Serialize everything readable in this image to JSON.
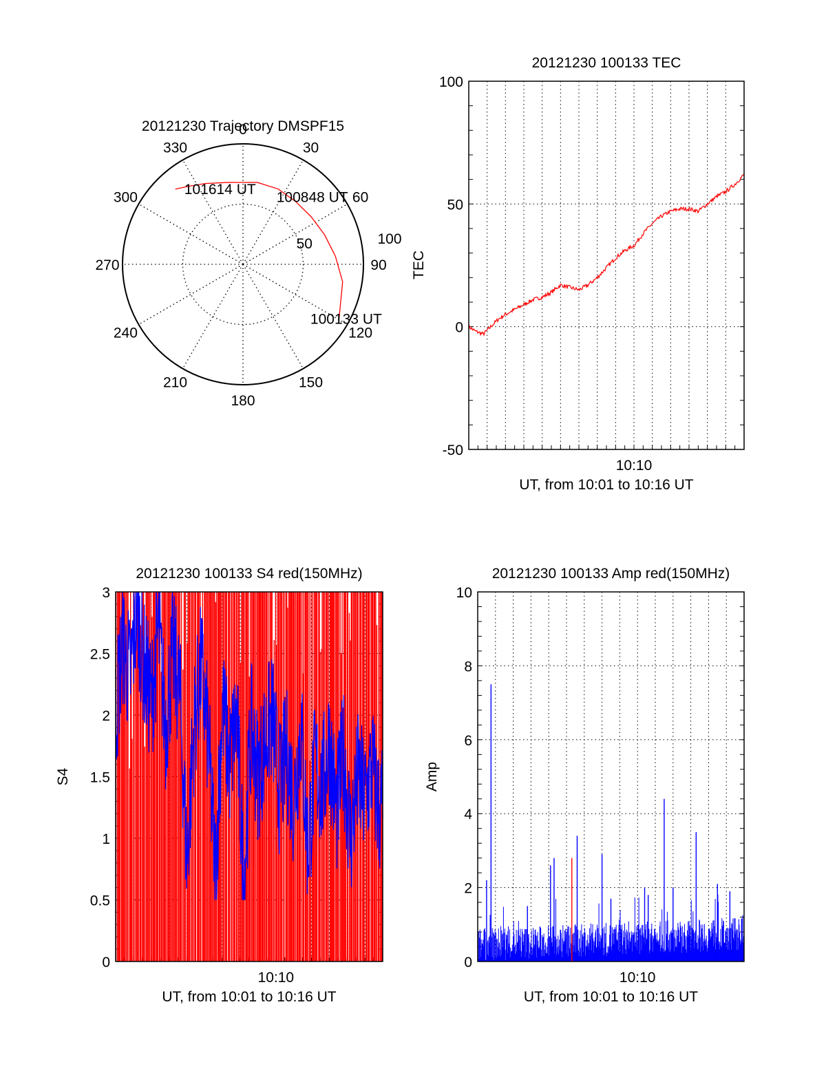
{
  "colors": {
    "red": "#ff0000",
    "blue": "#0000ff",
    "axis": "#000000",
    "grid": "#000000"
  },
  "chart_data": [
    {
      "id": "trajectory",
      "type": "polar",
      "title": "20121230 Trajectory DMSPF15",
      "angle_labels": [
        "0",
        "30",
        "60",
        "90",
        "120",
        "150",
        "180",
        "210",
        "240",
        "270",
        "300",
        "330"
      ],
      "angles_deg": [
        0,
        30,
        60,
        90,
        120,
        150,
        180,
        210,
        240,
        270,
        300,
        330
      ],
      "radial_labels": [
        "50",
        "100"
      ],
      "radial_values": [
        50,
        100
      ],
      "rlim": [
        0,
        100
      ],
      "grid": true,
      "trajectory": {
        "color": "red",
        "points": [
          {
            "az": 120,
            "r": 92
          },
          {
            "az": 100,
            "r": 84
          },
          {
            "az": 85,
            "r": 77
          },
          {
            "az": 70,
            "r": 72
          },
          {
            "az": 55,
            "r": 69
          },
          {
            "az": 40,
            "r": 68
          },
          {
            "az": 25,
            "r": 69
          },
          {
            "az": 10,
            "r": 69
          },
          {
            "az": 0,
            "r": 68
          },
          {
            "az": 350,
            "r": 69
          },
          {
            "az": 335,
            "r": 74
          },
          {
            "az": 325,
            "r": 79
          },
          {
            "az": 318,
            "r": 84
          }
        ],
        "annotations": [
          {
            "text": "101614 UT",
            "az": 343,
            "r": 65
          },
          {
            "text": "100848 UT",
            "az": 46,
            "r": 80
          },
          {
            "text": "100133 UT",
            "az": 118,
            "r": 97
          }
        ]
      }
    },
    {
      "id": "tec",
      "type": "line",
      "title": "20121230 100133 TEC",
      "xlabel": "UT, from 10:01 to 10:16 UT",
      "ylabel": "TEC",
      "x_tick_label": "10:10",
      "ylim": [
        -50,
        100
      ],
      "yticks": [
        -50,
        0,
        50,
        100
      ],
      "grid": true,
      "series": [
        {
          "color": "red",
          "x_minutes": [
            0,
            0.4,
            0.8,
            1.2,
            1.6,
            2.0,
            2.5,
            3.0,
            3.5,
            4.0,
            4.5,
            5.0,
            5.5,
            6.0,
            6.5,
            7.0,
            7.5,
            8.0,
            8.5,
            9.0,
            9.5,
            10.0,
            10.5,
            11.0,
            11.5,
            12.0,
            12.5,
            13.0,
            13.5,
            14.0,
            14.5,
            15.0
          ],
          "values": [
            0,
            -2,
            -3,
            0,
            3,
            5,
            7,
            9,
            11,
            12,
            14,
            17,
            16,
            15,
            17,
            20,
            24,
            28,
            31,
            33,
            38,
            42,
            45,
            47,
            48,
            48,
            47,
            50,
            53,
            55,
            58,
            62
          ]
        }
      ]
    },
    {
      "id": "s4",
      "type": "line",
      "title": "20121230 100133 S4 red(150MHz)",
      "xlabel": "UT, from 10:01 to 10:16 UT",
      "ylabel": "S4",
      "x_tick_label": "10:10",
      "ylim": [
        0,
        3
      ],
      "yticks": [
        0,
        0.5,
        1,
        1.5,
        2,
        2.5,
        3
      ],
      "ytick_labels": [
        "0",
        "0.5",
        "1",
        "1.5",
        "2",
        "2.5",
        "3"
      ],
      "grid": true,
      "series": [
        {
          "color": "red",
          "style": "spikes",
          "x_minutes": [
            0.1,
            0.3,
            0.5,
            0.8,
            1.1,
            1.4,
            1.7,
            2.0,
            2.4,
            2.8,
            3.2,
            3.6,
            4.0,
            4.5,
            5.0,
            5.5,
            6.0,
            6.5,
            7.0,
            7.5,
            8.0,
            8.5,
            9.0,
            9.5,
            10.0,
            10.5,
            11.0,
            11.5,
            12.0,
            12.5,
            13.0,
            13.5,
            14.0,
            14.5,
            14.9
          ],
          "values": [
            3,
            3,
            2.8,
            3,
            3,
            3,
            2.9,
            3,
            3,
            3,
            3,
            3,
            3,
            3,
            3,
            3,
            3,
            3,
            3,
            3,
            3,
            3,
            3,
            3,
            3,
            3,
            3,
            3,
            3,
            3,
            3,
            3,
            3,
            3,
            3
          ]
        },
        {
          "color": "blue",
          "x_minutes": [
            0,
            0.4,
            0.8,
            1.2,
            1.6,
            2.0,
            2.4,
            2.8,
            3.2,
            3.6,
            4.0,
            4.4,
            4.8,
            5.2,
            5.6,
            6.0,
            6.4,
            6.8,
            7.2,
            7.6,
            8.0,
            8.4,
            8.8,
            9.2,
            9.6,
            10.0,
            10.4,
            10.8,
            11.2,
            11.6,
            12.0,
            12.4,
            12.8,
            13.2,
            13.6,
            14.0,
            14.4,
            14.8,
            15.0
          ],
          "values": [
            2.0,
            2.6,
            2.3,
            2.9,
            2.4,
            2.1,
            2.7,
            1.9,
            2.5,
            2.2,
            0.8,
            1.9,
            2.4,
            1.8,
            0.7,
            2.1,
            1.6,
            2.0,
            0.6,
            1.9,
            1.5,
            1.8,
            2.0,
            1.4,
            1.7,
            1.3,
            1.9,
            0.9,
            1.6,
            1.4,
            1.8,
            1.2,
            1.7,
            1.0,
            1.5,
            1.3,
            1.6,
            1.2,
            1.3
          ]
        }
      ]
    },
    {
      "id": "amp",
      "type": "line",
      "title": "20121230 100133 Amp red(150MHz)",
      "xlabel": "UT, from 10:01 to 10:16 UT",
      "ylabel": "Amp",
      "x_tick_label": "10:10",
      "ylim": [
        0,
        10
      ],
      "yticks": [
        0,
        2,
        4,
        6,
        8,
        10
      ],
      "grid": true,
      "series": [
        {
          "color": "red",
          "style": "spikes",
          "x_minutes": [
            5.3
          ],
          "values": [
            2.8
          ]
        },
        {
          "color": "blue",
          "style": "spikes",
          "x_minutes": [
            0.5,
            0.75,
            2.8,
            4.1,
            4.3,
            5.6,
            7.0,
            7.5,
            9.4,
            9.6,
            10.5,
            11.0,
            12.3,
            13.5,
            14.2
          ],
          "values": [
            2.2,
            7.5,
            1.5,
            2.6,
            2.8,
            3.4,
            2.9,
            1.7,
            2.0,
            1.8,
            4.4,
            2.0,
            3.5,
            2.1,
            1.9
          ]
        }
      ],
      "baseline_band": {
        "color": "blue",
        "low": 0,
        "high": 0.9
      }
    }
  ]
}
